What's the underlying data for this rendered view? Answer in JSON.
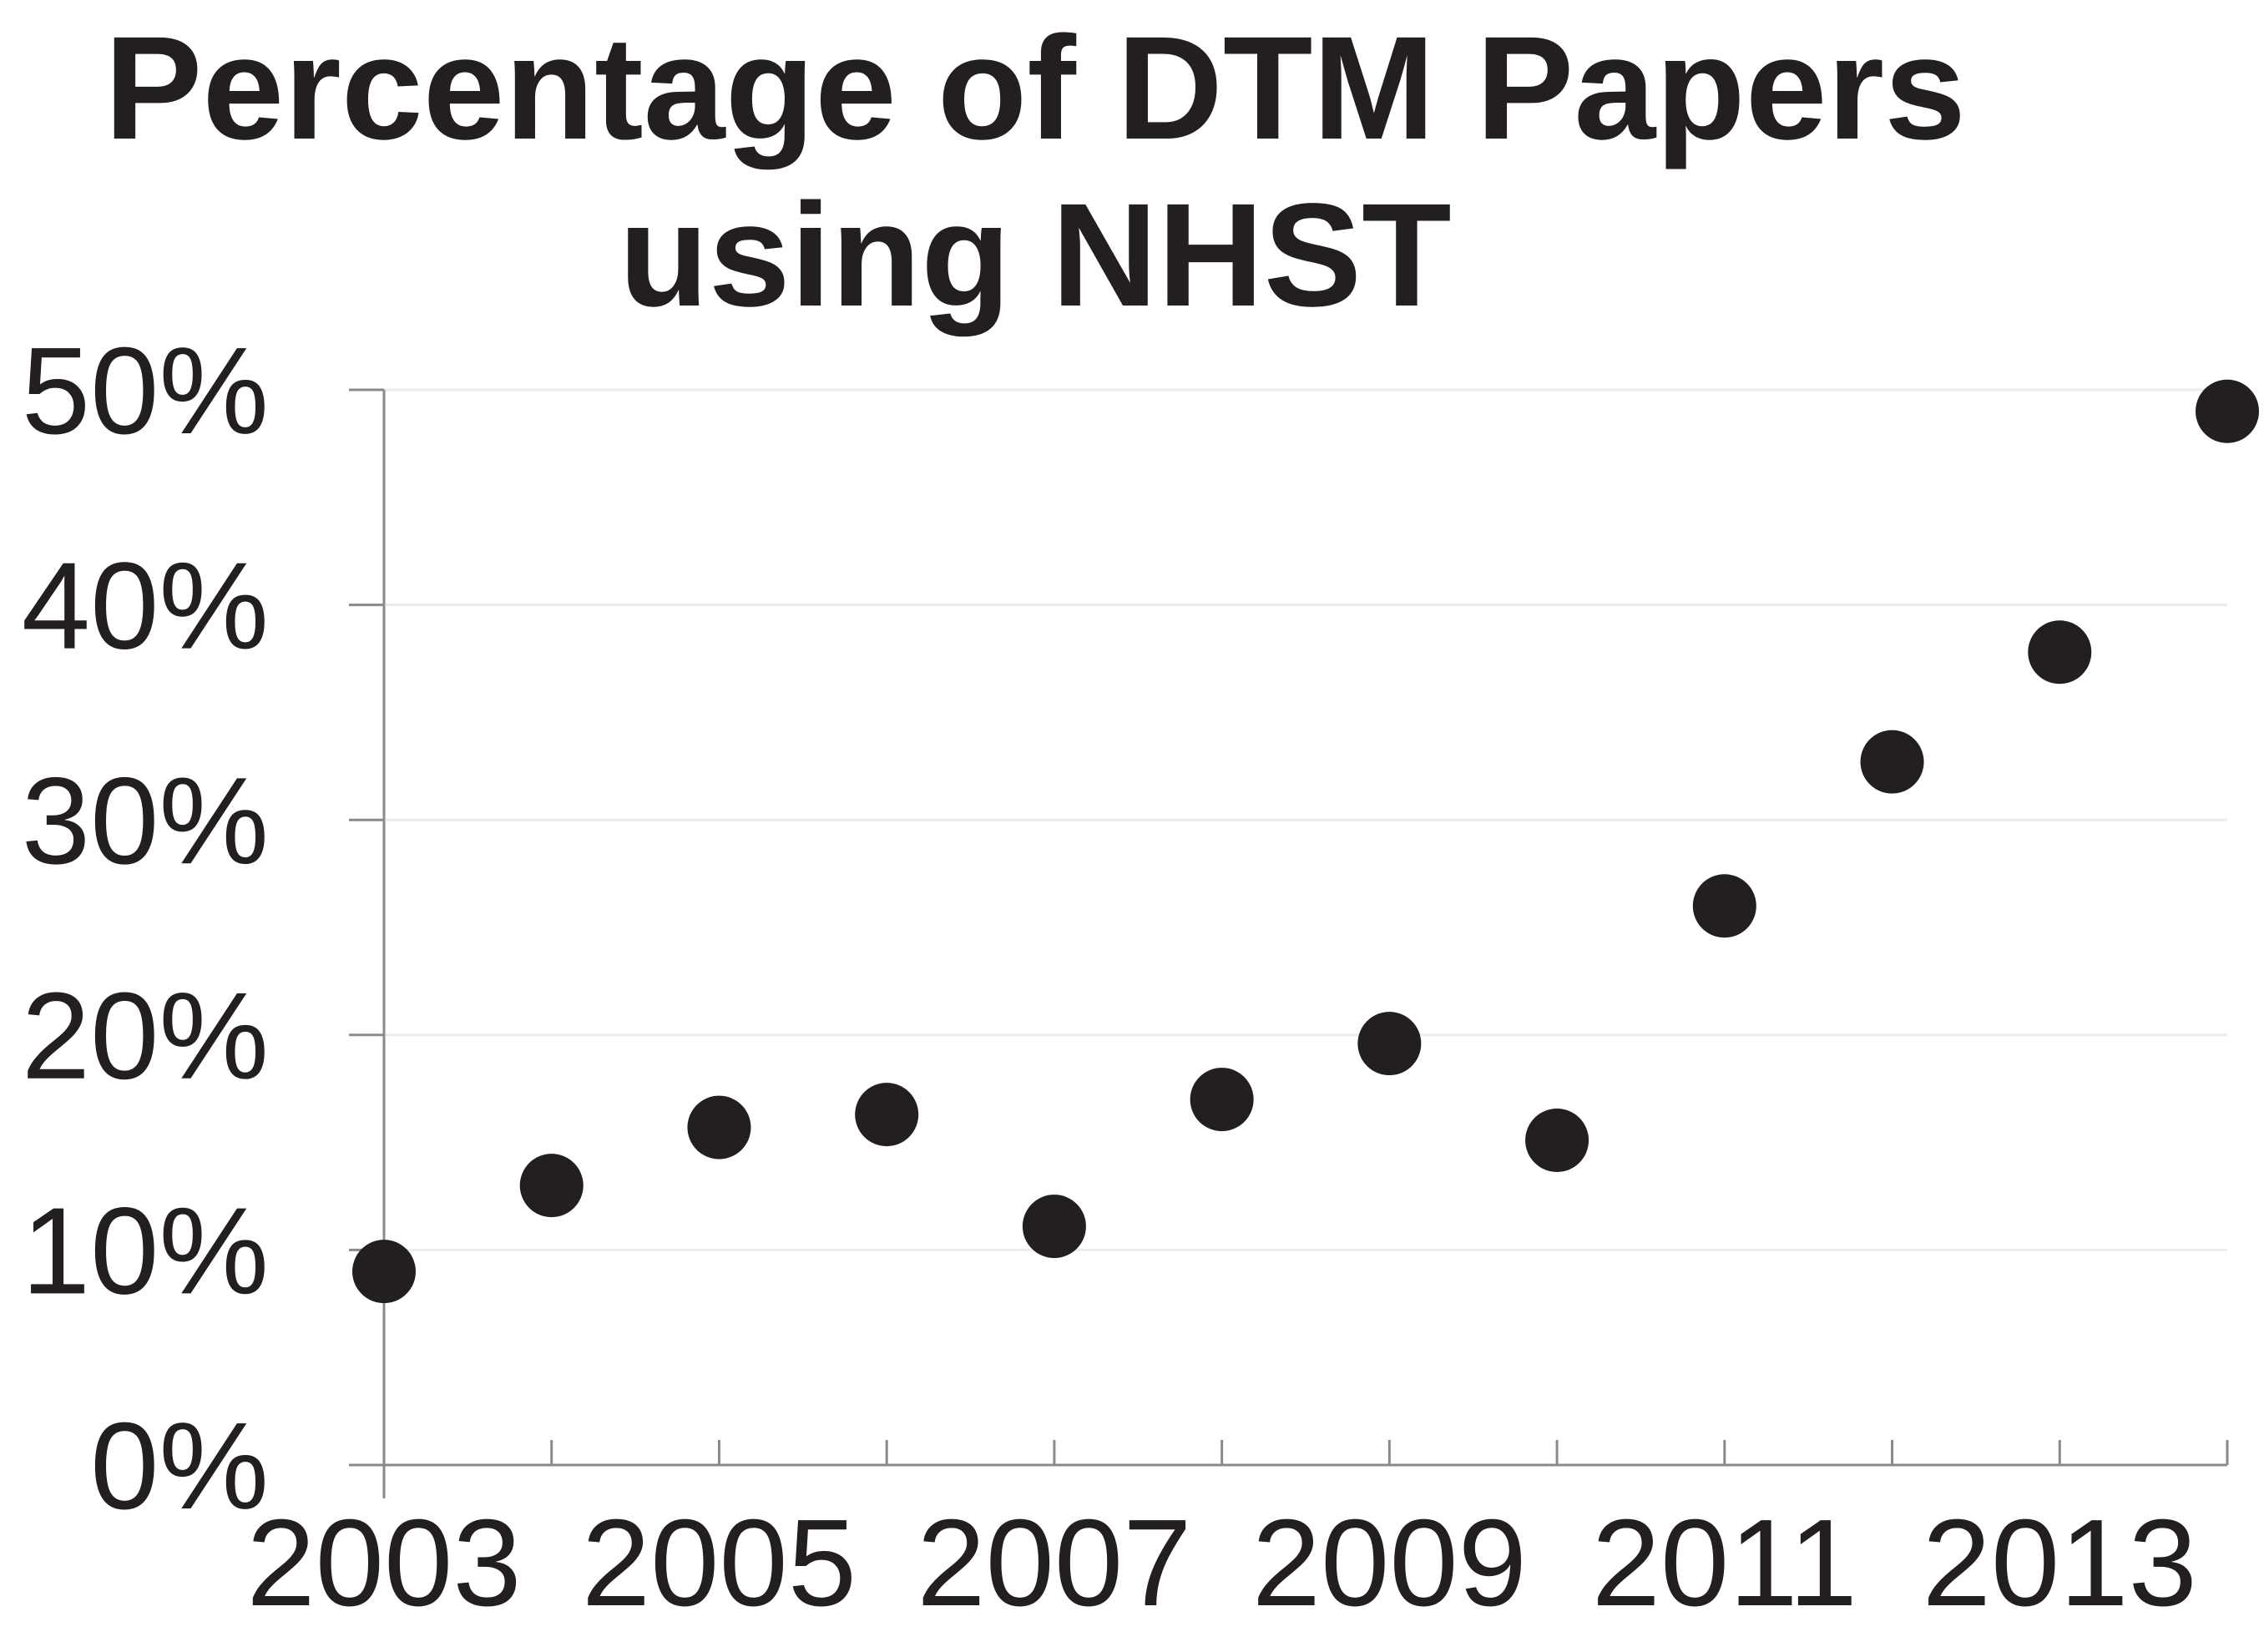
{
  "chart_data": {
    "type": "scatter",
    "title_lines": [
      "Percentage of DTM Papers",
      "using NHST"
    ],
    "xlabel": "",
    "ylabel": "",
    "x": [
      2003,
      2004,
      2005,
      2006,
      2007,
      2008,
      2009,
      2010,
      2011,
      2012,
      2013,
      2014
    ],
    "y": [
      9,
      13,
      15.7,
      16.3,
      11.1,
      17,
      19.6,
      15.1,
      26,
      32.7,
      37.8,
      49
    ],
    "xlim": [
      2003,
      2014
    ],
    "ylim": [
      0,
      50
    ],
    "y_ticks": [
      0,
      10,
      20,
      30,
      40,
      50
    ],
    "y_tick_labels": [
      "0%",
      "10%",
      "20%",
      "30%",
      "40%",
      "50%"
    ],
    "x_ticks": [
      2003,
      2004,
      2005,
      2006,
      2007,
      2008,
      2009,
      2010,
      2011,
      2012,
      2013,
      2014
    ],
    "x_tick_labels": [
      "2003",
      "2005",
      "2007",
      "2009",
      "2011",
      "2013"
    ],
    "x_labeled_ticks": [
      2003,
      2005,
      2007,
      2009,
      2011,
      2013
    ],
    "grid": true,
    "legend": "none",
    "colors": {
      "marker": "#231f20",
      "axis": "#8a8a8a",
      "grid": "#ececec",
      "text": "#231f20"
    }
  }
}
